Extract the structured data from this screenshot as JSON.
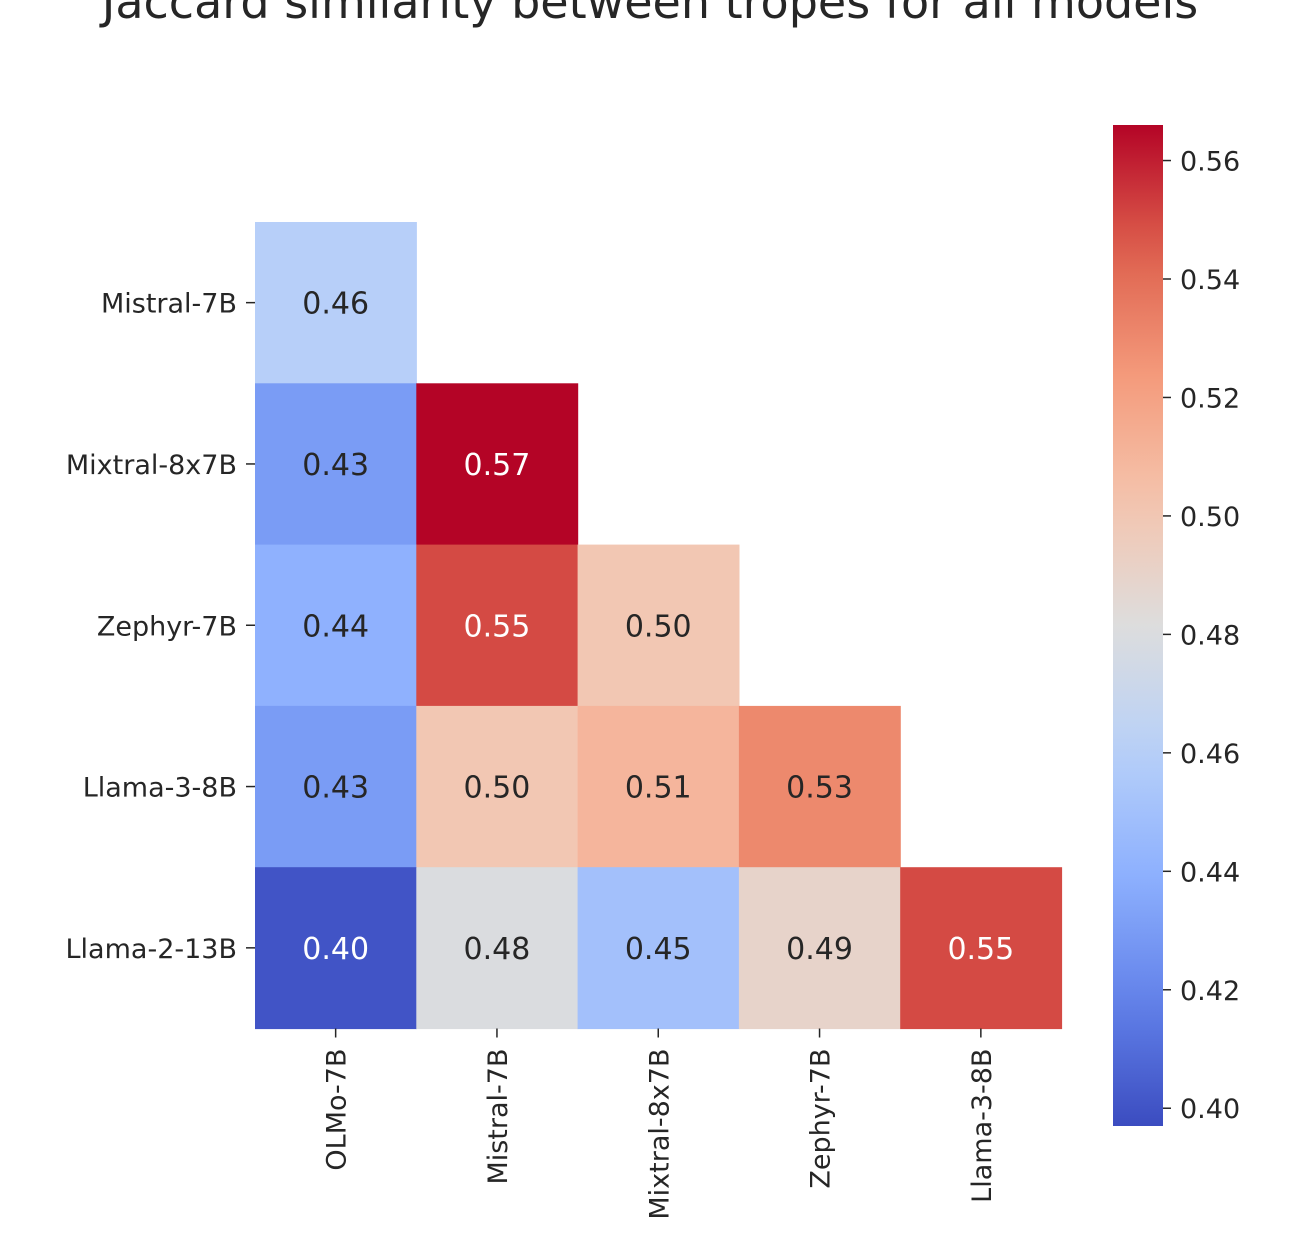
{
  "chart_data": {
    "type": "heatmap",
    "title": "Jaccard similarity between tropes for all models",
    "row_labels": [
      "Mistral-7B",
      "Mixtral-8x7B",
      "Zephyr-7B",
      "Llama-3-8B",
      "Llama-2-13B"
    ],
    "col_labels": [
      "OLMo-7B",
      "Mistral-7B",
      "Mixtral-8x7B",
      "Zephyr-7B",
      "Llama-3-8B"
    ],
    "values": [
      [
        0.46,
        null,
        null,
        null,
        null
      ],
      [
        0.43,
        0.57,
        null,
        null,
        null
      ],
      [
        0.44,
        0.55,
        0.5,
        null,
        null
      ],
      [
        0.43,
        0.5,
        0.51,
        0.53,
        null
      ],
      [
        0.4,
        0.48,
        0.45,
        0.49,
        0.55
      ]
    ],
    "colormap": "coolwarm",
    "colorbar": {
      "range": [
        0.397,
        0.566
      ],
      "ticks": [
        "0.40",
        "0.42",
        "0.44",
        "0.46",
        "0.48",
        "0.50",
        "0.52",
        "0.54",
        "0.56"
      ]
    },
    "mask": "upper-triangle"
  }
}
